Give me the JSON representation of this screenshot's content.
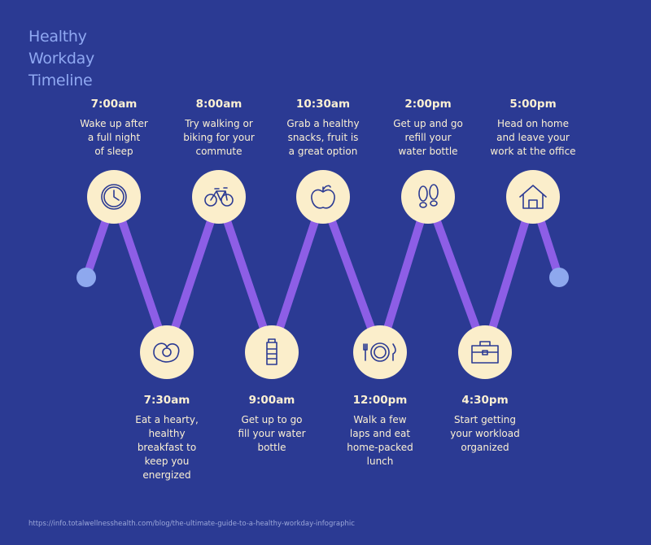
{
  "title": "Healthy Workday Timeline",
  "events": [
    {
      "time": "7:00am",
      "lines": [
        "Wake up after",
        "a full night",
        "of sleep"
      ]
    },
    {
      "time": "7:30am",
      "lines": [
        "Eat a hearty,",
        "healthy",
        "breakfast to",
        "keep you",
        "energized"
      ]
    },
    {
      "time": "8:00am",
      "lines": [
        "Try walking or",
        "biking for your",
        "commute"
      ]
    },
    {
      "time": "9:00am",
      "lines": [
        "Get up to go",
        "fill your water",
        "bottle"
      ]
    },
    {
      "time": "10:30am",
      "lines": [
        "Grab a healthy",
        "snacks, fruit is",
        "a great option"
      ]
    },
    {
      "time": "12:00pm",
      "lines": [
        "Walk a few",
        "laps and eat",
        "home-packed",
        "lunch"
      ]
    },
    {
      "time": "2:00pm",
      "lines": [
        "Get up and go",
        "refill your",
        "water bottle"
      ]
    },
    {
      "time": "4:30pm",
      "lines": [
        "Start getting",
        "your workload",
        "organized"
      ]
    },
    {
      "time": "5:00pm",
      "lines": [
        "Head on home",
        "and leave your",
        "work at the office"
      ]
    }
  ],
  "source": "https://info.totalwellnesshealth.com/blog/the-ultimate-guide-to-a-healthy-workday-infographic"
}
